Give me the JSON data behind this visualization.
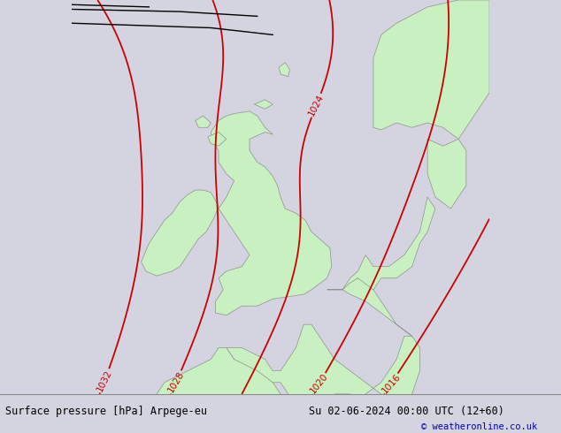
{
  "title_left": "Surface pressure [hPa] Arpege-eu",
  "title_right": "Su 02-06-2024 00:00 UTC (12+60)",
  "credit": "© weatheronline.co.uk",
  "bg_color": "#d4d4e0",
  "land_color": "#c8f0c0",
  "border_color": "#909090",
  "isobar_color": "#cc0000",
  "black_line_color": "#000000",
  "font_color_black": "#000000",
  "credit_color": "#0000bb",
  "bottom_bg": "#e0e0e0",
  "isobar_values": [
    1016,
    1020,
    1024,
    1028,
    1032
  ],
  "isobar_lw": 1.3,
  "lon_min": -15.0,
  "lon_max": 12.0,
  "lat_min": 46.5,
  "lat_max": 63.5
}
